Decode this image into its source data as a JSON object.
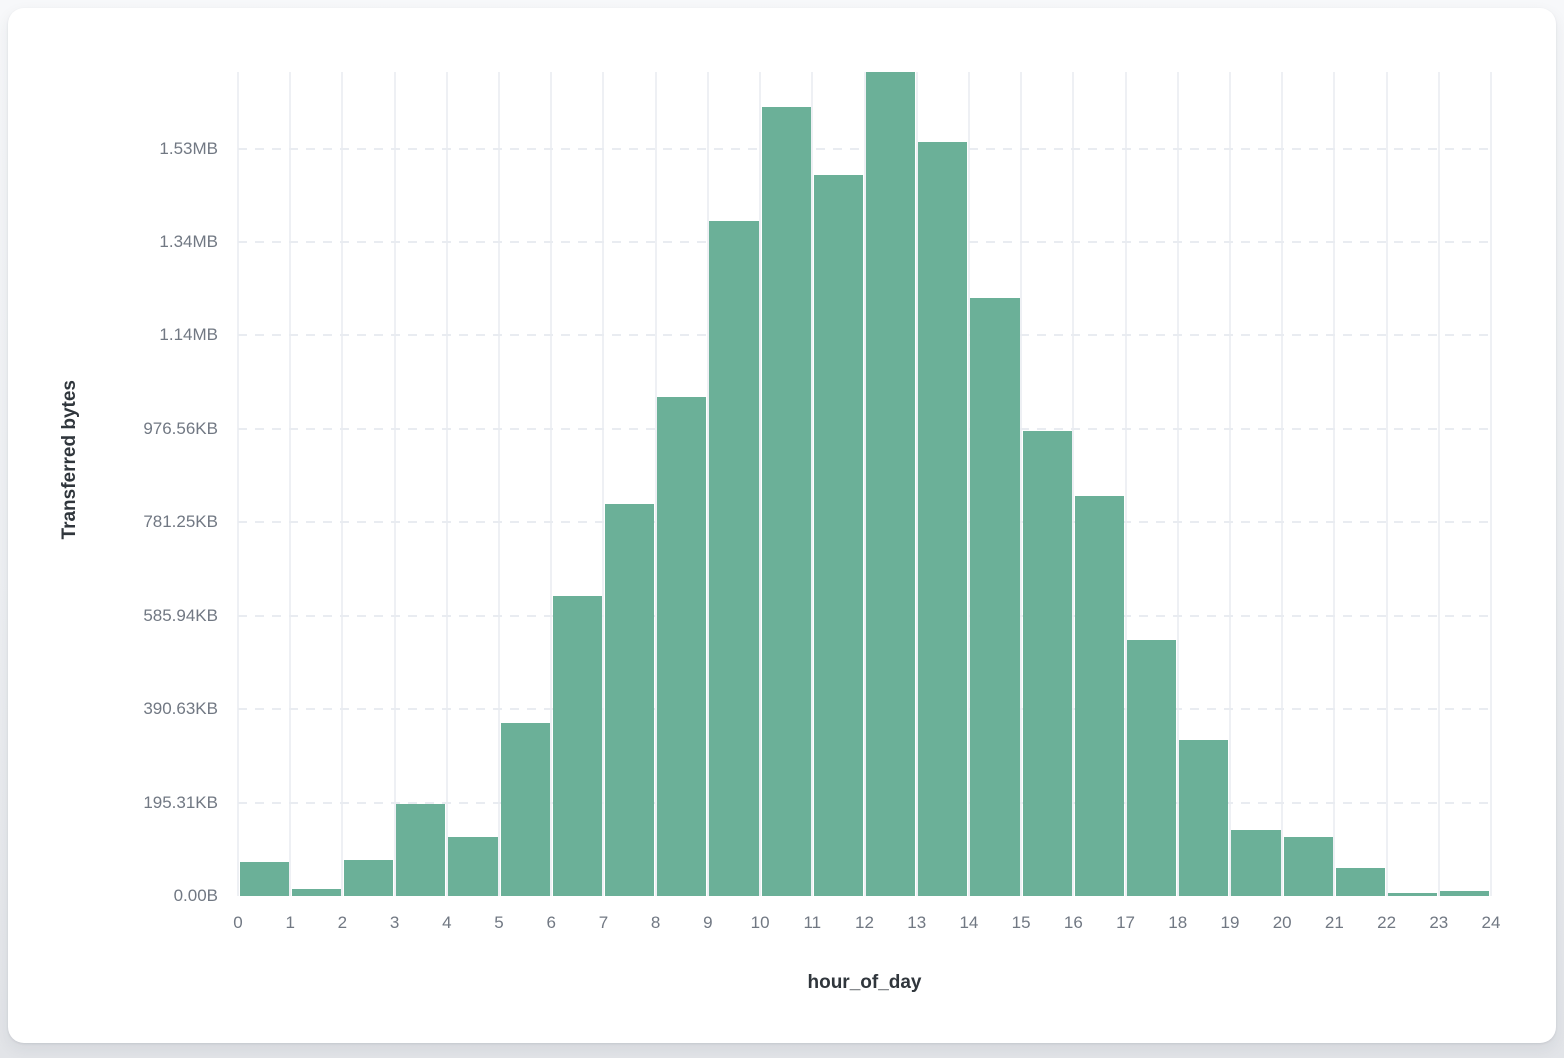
{
  "card": {
    "background": "#ffffff"
  },
  "chart_data": {
    "type": "bar",
    "subtype": "histogram",
    "title": "",
    "xlabel": "hour_of_day",
    "ylabel": "Transferred bytes",
    "categories": [
      0,
      1,
      2,
      3,
      4,
      5,
      6,
      7,
      8,
      9,
      10,
      11,
      12,
      13,
      14,
      15,
      16,
      17,
      18,
      19,
      20,
      21,
      22,
      23
    ],
    "values": [
      73000,
      16000,
      78000,
      196000,
      127000,
      370000,
      642000,
      840000,
      1068000,
      1444000,
      1690000,
      1544000,
      1764000,
      1615000,
      1280000,
      996000,
      857000,
      547000,
      334000,
      141000,
      126000,
      59000,
      6000,
      11000
    ],
    "values_unit": "bytes",
    "xlim": [
      0,
      24
    ],
    "ylim": [
      0,
      1764000
    ],
    "x_ticks": [
      "0",
      "1",
      "2",
      "3",
      "4",
      "5",
      "6",
      "7",
      "8",
      "9",
      "10",
      "11",
      "12",
      "13",
      "14",
      "15",
      "16",
      "17",
      "18",
      "19",
      "20",
      "21",
      "22",
      "23",
      "24"
    ],
    "y_ticks": [
      {
        "label": "0.00B",
        "value": 0
      },
      {
        "label": "195.31KB",
        "value": 200000
      },
      {
        "label": "390.63KB",
        "value": 400000
      },
      {
        "label": "585.94KB",
        "value": 600000
      },
      {
        "label": "781.25KB",
        "value": 800000
      },
      {
        "label": "976.56KB",
        "value": 1000000
      },
      {
        "label": "1.14MB",
        "value": 1200000
      },
      {
        "label": "1.34MB",
        "value": 1400000
      },
      {
        "label": "1.53MB",
        "value": 1600000
      }
    ],
    "grid": {
      "horizontal": "dashed",
      "vertical": "solid"
    },
    "legend_position": "none"
  },
  "colors": {
    "bar": "#6bb098",
    "bar_gap": "#ffffff",
    "v_grid": "#eef0f4",
    "h_grid": "#e9ecf1",
    "tick_label": "#717883",
    "axis_title": "#30363c"
  }
}
